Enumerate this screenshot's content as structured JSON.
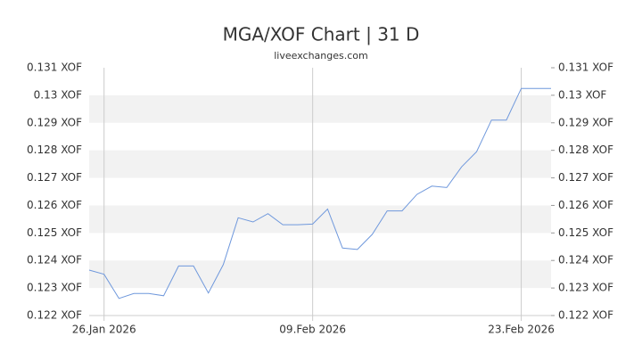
{
  "chart_data": {
    "type": "line",
    "title": "MGA/XOF Chart | 31 D",
    "subtitle": "liveexchanges.com",
    "categories": [
      null,
      "26.Jan 2026",
      null,
      null,
      null,
      null,
      null,
      null,
      null,
      null,
      null,
      null,
      null,
      null,
      null,
      "09.Feb 2026",
      null,
      null,
      null,
      null,
      null,
      null,
      null,
      null,
      null,
      null,
      null,
      null,
      null,
      "23.Feb 2026",
      null,
      null
    ],
    "series": [
      {
        "name": "MGA/XOF",
        "color": "#6f98dc",
        "values": [
          0.12365,
          0.1235,
          0.12262,
          0.1228,
          0.1228,
          0.12272,
          0.1238,
          0.1238,
          0.12282,
          0.12385,
          0.12555,
          0.1254,
          0.1257,
          0.1253,
          0.1253,
          0.12532,
          0.12587,
          0.12445,
          0.1244,
          0.12495,
          0.1258,
          0.1258,
          0.1264,
          0.1267,
          0.12665,
          0.1274,
          0.12795,
          0.1291,
          0.1291,
          0.13025,
          0.13025,
          0.13025
        ]
      }
    ],
    "ylim": [
      0.122,
      0.131
    ],
    "yticks": [
      {
        "value": 0.122,
        "label": "0.122 XOF"
      },
      {
        "value": 0.123,
        "label": "0.123 XOF"
      },
      {
        "value": 0.124,
        "label": "0.124 XOF"
      },
      {
        "value": 0.125,
        "label": "0.125 XOF"
      },
      {
        "value": 0.126,
        "label": "0.126 XOF"
      },
      {
        "value": 0.127,
        "label": "0.127 XOF"
      },
      {
        "value": 0.128,
        "label": "0.128 XOF"
      },
      {
        "value": 0.129,
        "label": "0.129 XOF"
      },
      {
        "value": 0.13,
        "label": "0.13 XOF"
      },
      {
        "value": 0.131,
        "label": "0.131 XOF"
      }
    ],
    "grid": true
  }
}
